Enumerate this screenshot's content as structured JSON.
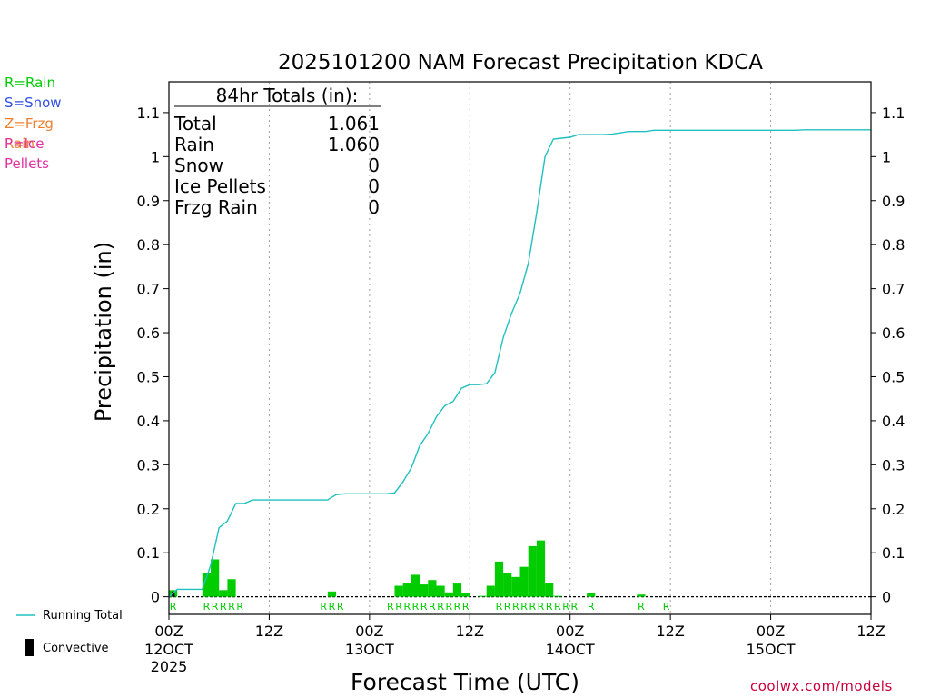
{
  "chart_data": {
    "type": "bar",
    "title": "2025101200 NAM Forecast Precipitation KDCA",
    "xlabel": "Forecast Time (UTC)",
    "ylabel": "Precipitation (in)",
    "ylim": [
      -0.04,
      1.17
    ],
    "xlim_hours": [
      0,
      84
    ],
    "y_ticks": [
      0,
      0.1,
      0.2,
      0.3,
      0.4,
      0.5,
      0.6,
      0.7,
      0.8,
      0.9,
      1,
      1.1
    ],
    "y_tick_labels": [
      "0",
      "0.1",
      "0.2",
      "0.3",
      "0.4",
      "0.5",
      "0.6",
      "0.7",
      "0.8",
      "0.9",
      "1",
      "1.1"
    ],
    "x_ticks": [
      {
        "hour": 0,
        "line1": "00Z",
        "line2": "12OCT",
        "line3": "2025"
      },
      {
        "hour": 12,
        "line1": "12Z"
      },
      {
        "hour": 24,
        "line1": "00Z",
        "line2": "13OCT"
      },
      {
        "hour": 36,
        "line1": "12Z"
      },
      {
        "hour": 48,
        "line1": "00Z",
        "line2": "14OCT"
      },
      {
        "hour": 60,
        "line1": "12Z"
      },
      {
        "hour": 72,
        "line1": "00Z",
        "line2": "15OCT"
      },
      {
        "hour": 84,
        "line1": "12Z"
      }
    ],
    "hourly_precip": {
      "name": "Rain",
      "color": "#00cc00",
      "hours": [
        1,
        5,
        6,
        7,
        8,
        20,
        28,
        29,
        30,
        31,
        32,
        33,
        34,
        35,
        36,
        38,
        39,
        40,
        41,
        42,
        43,
        44,
        45,
        46,
        47,
        51,
        57
      ],
      "values": [
        0.015,
        0.055,
        0.085,
        0.015,
        0.04,
        0.012,
        0.025,
        0.032,
        0.05,
        0.028,
        0.038,
        0.025,
        0.01,
        0.03,
        0.008,
        0.002,
        0.025,
        0.08,
        0.055,
        0.045,
        0.068,
        0.115,
        0.128,
        0.032,
        0.002,
        0.008,
        0.005
      ]
    },
    "convective": {
      "name": "Convective",
      "color": "#000000",
      "hours": [
        1
      ],
      "values": [
        0.012
      ]
    },
    "running_total": {
      "name": "Running Total",
      "color": "#20c0c0",
      "hours": [
        0,
        1,
        2,
        3,
        4,
        5,
        6,
        7,
        8,
        9,
        10,
        11,
        12,
        13,
        14,
        15,
        16,
        17,
        18,
        19,
        20,
        21,
        22,
        23,
        24,
        25,
        26,
        27,
        28,
        29,
        30,
        31,
        32,
        33,
        34,
        35,
        36,
        37,
        38,
        39,
        40,
        41,
        42,
        43,
        44,
        45,
        46,
        47,
        48,
        49,
        50,
        51,
        52,
        53,
        54,
        55,
        56,
        57,
        58,
        59,
        60,
        61,
        62,
        63,
        64,
        65,
        66,
        67,
        68,
        69,
        70,
        71,
        72,
        73,
        74,
        75,
        76,
        77,
        78,
        79,
        80,
        81,
        82,
        83,
        84
      ],
      "values": [
        0.0,
        0.017,
        0.017,
        0.017,
        0.017,
        0.072,
        0.157,
        0.172,
        0.212,
        0.212,
        0.22,
        0.22,
        0.22,
        0.22,
        0.22,
        0.22,
        0.22,
        0.22,
        0.22,
        0.22,
        0.232,
        0.234,
        0.234,
        0.234,
        0.234,
        0.234,
        0.234,
        0.236,
        0.261,
        0.293,
        0.343,
        0.371,
        0.409,
        0.434,
        0.444,
        0.474,
        0.482,
        0.482,
        0.484,
        0.509,
        0.589,
        0.644,
        0.689,
        0.757,
        0.872,
        1.0,
        1.04,
        1.042,
        1.044,
        1.05,
        1.05,
        1.05,
        1.05,
        1.051,
        1.054,
        1.057,
        1.057,
        1.057,
        1.06,
        1.06,
        1.06,
        1.06,
        1.06,
        1.06,
        1.06,
        1.06,
        1.06,
        1.06,
        1.06,
        1.06,
        1.06,
        1.06,
        1.06,
        1.06,
        1.06,
        1.06,
        1.061,
        1.061,
        1.061,
        1.061,
        1.061,
        1.061,
        1.061,
        1.061,
        1.061
      ]
    },
    "ptype_marks": {
      "color": "#00cc00",
      "letter": "R",
      "hours": [
        1,
        5,
        6,
        7,
        8,
        9,
        19,
        20,
        21,
        27,
        28,
        29,
        30,
        31,
        32,
        33,
        34,
        35,
        36,
        40,
        41,
        42,
        43,
        44,
        45,
        46,
        47,
        48,
        49,
        51,
        57,
        60
      ]
    },
    "totals_box": {
      "heading": "84hr Totals (in):",
      "rows": [
        {
          "label": "Total",
          "value": "1.061"
        },
        {
          "label": "Rain",
          "value": "1.060"
        },
        {
          "label": "Snow",
          "value": "0"
        },
        {
          "label": "Ice Pellets",
          "value": "0"
        },
        {
          "label": "Frzg Rain",
          "value": "0"
        }
      ]
    }
  },
  "legend": [
    {
      "text": "R=Rain",
      "color": "#00cc00"
    },
    {
      "text": "S=Snow",
      "color": "#3050e0"
    },
    {
      "text": "Z=Frzg Rain",
      "color": "#f08030"
    },
    {
      "text": "P=Ice Pellets",
      "color": "#e030a0"
    }
  ],
  "key": {
    "running_total_label": "Running Total",
    "convective_label": "Convective"
  },
  "credit": "coolwx.com/models",
  "credit_color": "#c8003c"
}
